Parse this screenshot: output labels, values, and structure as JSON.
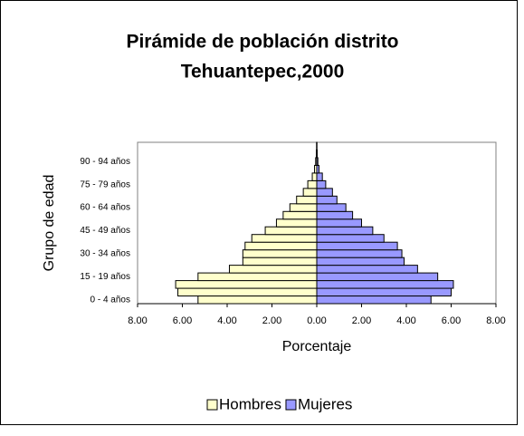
{
  "chart_data": {
    "type": "pyramid",
    "title": [
      "Pirámide de población distrito",
      "Tehuantepec,2000"
    ],
    "x_label": "Porcentaje",
    "y_label": "Grupo de edad",
    "categories": [
      "0 -  4  años",
      null,
      null,
      "15 - 19 años",
      null,
      null,
      "30 - 34 años",
      null,
      null,
      "45 - 49 años",
      null,
      null,
      "60 - 64 años",
      null,
      null,
      "75 - 79 años",
      null,
      null,
      "90 - 94 años",
      null,
      null
    ],
    "series": [
      {
        "name": "Hombres",
        "color": "#ffffcc",
        "values": [
          -5.3,
          -6.2,
          -6.3,
          -5.3,
          -3.9,
          -3.3,
          -3.3,
          -3.2,
          -2.9,
          -2.3,
          -1.8,
          -1.5,
          -1.2,
          -0.9,
          -0.6,
          -0.4,
          -0.2,
          -0.1,
          -0.05,
          -0.02,
          -0.01
        ]
      },
      {
        "name": "Mujeres",
        "color": "#9999ff",
        "values": [
          5.1,
          6.0,
          6.1,
          5.4,
          4.5,
          3.9,
          3.8,
          3.6,
          3.0,
          2.5,
          2.0,
          1.6,
          1.3,
          0.9,
          0.7,
          0.4,
          0.25,
          0.1,
          0.05,
          0.02,
          0.01
        ]
      }
    ],
    "xlim": [
      -8,
      8
    ],
    "xticks": [
      {
        "value": -8,
        "label": "8.00"
      },
      {
        "value": -6,
        "label": "6.00"
      },
      {
        "value": -4,
        "label": "4.00"
      },
      {
        "value": -2,
        "label": "2.00"
      },
      {
        "value": 0,
        "label": "0.00"
      },
      {
        "value": 2,
        "label": "2.00"
      },
      {
        "value": 4,
        "label": "4.00"
      },
      {
        "value": 6,
        "label": "6.00"
      },
      {
        "value": 8,
        "label": "8.00"
      }
    ],
    "legend": "bottom"
  }
}
